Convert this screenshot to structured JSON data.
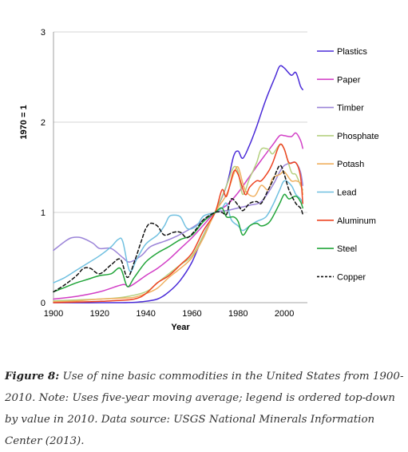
{
  "chart_data": {
    "type": "line",
    "title": "",
    "xlabel": "Year",
    "ylabel": "1970 = 1",
    "xlim": [
      1900,
      2010
    ],
    "ylim": [
      0,
      3
    ],
    "xticks": [
      1900,
      1920,
      1940,
      1960,
      1980,
      2000
    ],
    "yticks": [
      0,
      1,
      2,
      3
    ],
    "grid": "horizontal",
    "legend_position": "right",
    "series": [
      {
        "name": "Plastics",
        "color": "#4a2bd8",
        "dash": false,
        "points": [
          [
            1900,
            0
          ],
          [
            1930,
            0
          ],
          [
            1938,
            0.01
          ],
          [
            1945,
            0.04
          ],
          [
            1950,
            0.12
          ],
          [
            1955,
            0.25
          ],
          [
            1960,
            0.45
          ],
          [
            1965,
            0.75
          ],
          [
            1970,
            1.0
          ],
          [
            1975,
            1.3
          ],
          [
            1978,
            1.62
          ],
          [
            1980,
            1.68
          ],
          [
            1982,
            1.6
          ],
          [
            1985,
            1.75
          ],
          [
            1988,
            1.95
          ],
          [
            1992,
            2.25
          ],
          [
            1996,
            2.5
          ],
          [
            1998,
            2.62
          ],
          [
            2000,
            2.6
          ],
          [
            2003,
            2.52
          ],
          [
            2005,
            2.55
          ],
          [
            2007,
            2.4
          ],
          [
            2008,
            2.36
          ]
        ]
      },
      {
        "name": "Paper",
        "color": "#d23fc6",
        "dash": false,
        "points": [
          [
            1900,
            0.04
          ],
          [
            1910,
            0.07
          ],
          [
            1920,
            0.12
          ],
          [
            1930,
            0.2
          ],
          [
            1933,
            0.18
          ],
          [
            1940,
            0.3
          ],
          [
            1945,
            0.38
          ],
          [
            1950,
            0.48
          ],
          [
            1955,
            0.6
          ],
          [
            1960,
            0.72
          ],
          [
            1965,
            0.86
          ],
          [
            1970,
            1.0
          ],
          [
            1975,
            1.08
          ],
          [
            1980,
            1.22
          ],
          [
            1985,
            1.4
          ],
          [
            1990,
            1.58
          ],
          [
            1995,
            1.75
          ],
          [
            1998,
            1.85
          ],
          [
            2000,
            1.85
          ],
          [
            2003,
            1.84
          ],
          [
            2005,
            1.88
          ],
          [
            2007,
            1.8
          ],
          [
            2008,
            1.71
          ]
        ]
      },
      {
        "name": "Timber",
        "color": "#9b84d8",
        "dash": false,
        "points": [
          [
            1900,
            0.58
          ],
          [
            1905,
            0.68
          ],
          [
            1908,
            0.72
          ],
          [
            1912,
            0.72
          ],
          [
            1917,
            0.66
          ],
          [
            1920,
            0.6
          ],
          [
            1925,
            0.6
          ],
          [
            1930,
            0.5
          ],
          [
            1933,
            0.45
          ],
          [
            1938,
            0.52
          ],
          [
            1942,
            0.62
          ],
          [
            1948,
            0.68
          ],
          [
            1952,
            0.72
          ],
          [
            1958,
            0.8
          ],
          [
            1963,
            0.88
          ],
          [
            1970,
            1.0
          ],
          [
            1975,
            1.02
          ],
          [
            1980,
            1.05
          ],
          [
            1985,
            1.08
          ],
          [
            1990,
            1.12
          ],
          [
            1995,
            1.3
          ],
          [
            1998,
            1.45
          ],
          [
            2000,
            1.52
          ],
          [
            2003,
            1.55
          ],
          [
            2005,
            1.55
          ],
          [
            2007,
            1.45
          ],
          [
            2008,
            1.3
          ]
        ]
      },
      {
        "name": "Phosphate",
        "color": "#b5d080",
        "dash": false,
        "points": [
          [
            1900,
            0.02
          ],
          [
            1910,
            0.03
          ],
          [
            1920,
            0.04
          ],
          [
            1930,
            0.06
          ],
          [
            1940,
            0.12
          ],
          [
            1945,
            0.22
          ],
          [
            1950,
            0.32
          ],
          [
            1955,
            0.42
          ],
          [
            1960,
            0.52
          ],
          [
            1965,
            0.75
          ],
          [
            1970,
            1.0
          ],
          [
            1975,
            1.3
          ],
          [
            1978,
            1.5
          ],
          [
            1980,
            1.45
          ],
          [
            1982,
            1.2
          ],
          [
            1985,
            1.38
          ],
          [
            1988,
            1.55
          ],
          [
            1990,
            1.7
          ],
          [
            1993,
            1.7
          ],
          [
            1995,
            1.65
          ],
          [
            1998,
            1.75
          ],
          [
            2000,
            1.7
          ],
          [
            2003,
            1.45
          ],
          [
            2005,
            1.42
          ],
          [
            2007,
            1.3
          ],
          [
            2008,
            1.25
          ]
        ]
      },
      {
        "name": "Potash",
        "color": "#f0b060",
        "dash": false,
        "points": [
          [
            1900,
            0.01
          ],
          [
            1910,
            0.02
          ],
          [
            1920,
            0.04
          ],
          [
            1930,
            0.05
          ],
          [
            1935,
            0.06
          ],
          [
            1940,
            0.1
          ],
          [
            1945,
            0.16
          ],
          [
            1950,
            0.28
          ],
          [
            1955,
            0.38
          ],
          [
            1960,
            0.5
          ],
          [
            1965,
            0.72
          ],
          [
            1970,
            1.0
          ],
          [
            1975,
            1.2
          ],
          [
            1978,
            1.42
          ],
          [
            1980,
            1.5
          ],
          [
            1983,
            1.25
          ],
          [
            1987,
            1.18
          ],
          [
            1990,
            1.3
          ],
          [
            1993,
            1.25
          ],
          [
            1995,
            1.38
          ],
          [
            1998,
            1.42
          ],
          [
            2000,
            1.45
          ],
          [
            2003,
            1.35
          ],
          [
            2005,
            1.35
          ],
          [
            2007,
            1.32
          ],
          [
            2008,
            1.2
          ]
        ]
      },
      {
        "name": "Lead",
        "color": "#70c0e0",
        "dash": false,
        "points": [
          [
            1900,
            0.22
          ],
          [
            1905,
            0.28
          ],
          [
            1910,
            0.36
          ],
          [
            1915,
            0.44
          ],
          [
            1920,
            0.52
          ],
          [
            1925,
            0.62
          ],
          [
            1928,
            0.7
          ],
          [
            1930,
            0.68
          ],
          [
            1933,
            0.35
          ],
          [
            1936,
            0.48
          ],
          [
            1940,
            0.65
          ],
          [
            1945,
            0.75
          ],
          [
            1948,
            0.85
          ],
          [
            1950,
            0.95
          ],
          [
            1952,
            0.97
          ],
          [
            1955,
            0.95
          ],
          [
            1958,
            0.82
          ],
          [
            1962,
            0.85
          ],
          [
            1965,
            0.96
          ],
          [
            1970,
            1.0
          ],
          [
            1973,
            1.05
          ],
          [
            1975,
            1.1
          ],
          [
            1977,
            0.92
          ],
          [
            1980,
            0.85
          ],
          [
            1982,
            0.8
          ],
          [
            1985,
            0.85
          ],
          [
            1988,
            0.9
          ],
          [
            1992,
            0.95
          ],
          [
            1995,
            1.08
          ],
          [
            1998,
            1.25
          ],
          [
            2000,
            1.35
          ],
          [
            2003,
            1.3
          ],
          [
            2005,
            1.2
          ],
          [
            2007,
            1.15
          ],
          [
            2008,
            1.1
          ]
        ]
      },
      {
        "name": "Aluminum",
        "color": "#ee4422",
        "dash": false,
        "points": [
          [
            1900,
            0
          ],
          [
            1915,
            0.01
          ],
          [
            1925,
            0.02
          ],
          [
            1935,
            0.04
          ],
          [
            1940,
            0.1
          ],
          [
            1945,
            0.22
          ],
          [
            1950,
            0.3
          ],
          [
            1955,
            0.42
          ],
          [
            1960,
            0.55
          ],
          [
            1965,
            0.8
          ],
          [
            1970,
            1.0
          ],
          [
            1973,
            1.25
          ],
          [
            1975,
            1.18
          ],
          [
            1978,
            1.45
          ],
          [
            1980,
            1.42
          ],
          [
            1983,
            1.2
          ],
          [
            1985,
            1.28
          ],
          [
            1988,
            1.35
          ],
          [
            1990,
            1.35
          ],
          [
            1993,
            1.45
          ],
          [
            1995,
            1.55
          ],
          [
            1998,
            1.75
          ],
          [
            2000,
            1.7
          ],
          [
            2002,
            1.55
          ],
          [
            2005,
            1.55
          ],
          [
            2007,
            1.4
          ],
          [
            2008,
            1.1
          ]
        ]
      },
      {
        "name": "Steel",
        "color": "#22a53a",
        "dash": false,
        "points": [
          [
            1900,
            0.12
          ],
          [
            1905,
            0.17
          ],
          [
            1910,
            0.22
          ],
          [
            1915,
            0.26
          ],
          [
            1920,
            0.3
          ],
          [
            1925,
            0.32
          ],
          [
            1929,
            0.38
          ],
          [
            1932,
            0.18
          ],
          [
            1935,
            0.28
          ],
          [
            1940,
            0.45
          ],
          [
            1945,
            0.55
          ],
          [
            1950,
            0.62
          ],
          [
            1955,
            0.7
          ],
          [
            1960,
            0.75
          ],
          [
            1965,
            0.9
          ],
          [
            1970,
            1.0
          ],
          [
            1973,
            1.05
          ],
          [
            1975,
            0.95
          ],
          [
            1978,
            0.95
          ],
          [
            1980,
            0.9
          ],
          [
            1982,
            0.75
          ],
          [
            1985,
            0.85
          ],
          [
            1988,
            0.88
          ],
          [
            1990,
            0.85
          ],
          [
            1993,
            0.88
          ],
          [
            1995,
            0.95
          ],
          [
            1998,
            1.1
          ],
          [
            2000,
            1.2
          ],
          [
            2002,
            1.15
          ],
          [
            2005,
            1.18
          ],
          [
            2007,
            1.12
          ],
          [
            2008,
            1.05
          ]
        ]
      },
      {
        "name": "Copper",
        "color": "#111111",
        "dash": true,
        "points": [
          [
            1900,
            0.12
          ],
          [
            1905,
            0.2
          ],
          [
            1910,
            0.3
          ],
          [
            1913,
            0.38
          ],
          [
            1916,
            0.38
          ],
          [
            1920,
            0.32
          ],
          [
            1925,
            0.42
          ],
          [
            1929,
            0.48
          ],
          [
            1932,
            0.28
          ],
          [
            1935,
            0.45
          ],
          [
            1938,
            0.68
          ],
          [
            1940,
            0.82
          ],
          [
            1942,
            0.88
          ],
          [
            1945,
            0.85
          ],
          [
            1948,
            0.75
          ],
          [
            1952,
            0.78
          ],
          [
            1955,
            0.78
          ],
          [
            1958,
            0.72
          ],
          [
            1962,
            0.82
          ],
          [
            1965,
            0.92
          ],
          [
            1970,
            1.0
          ],
          [
            1973,
            1.0
          ],
          [
            1975,
            0.98
          ],
          [
            1977,
            1.15
          ],
          [
            1980,
            1.08
          ],
          [
            1982,
            1.02
          ],
          [
            1985,
            1.1
          ],
          [
            1988,
            1.12
          ],
          [
            1990,
            1.1
          ],
          [
            1993,
            1.25
          ],
          [
            1995,
            1.35
          ],
          [
            1998,
            1.52
          ],
          [
            2000,
            1.42
          ],
          [
            2002,
            1.25
          ],
          [
            2005,
            1.1
          ],
          [
            2007,
            1.05
          ],
          [
            2008,
            0.98
          ]
        ]
      }
    ]
  },
  "caption": {
    "lead": "Figure 8:",
    "body": " Use of nine basic commodities in the United States from 1900-2010. Note: Uses five-year moving average; legend is ordered top-down by value in 2010. Data source: USGS National Minerals Information Center (2013)."
  }
}
